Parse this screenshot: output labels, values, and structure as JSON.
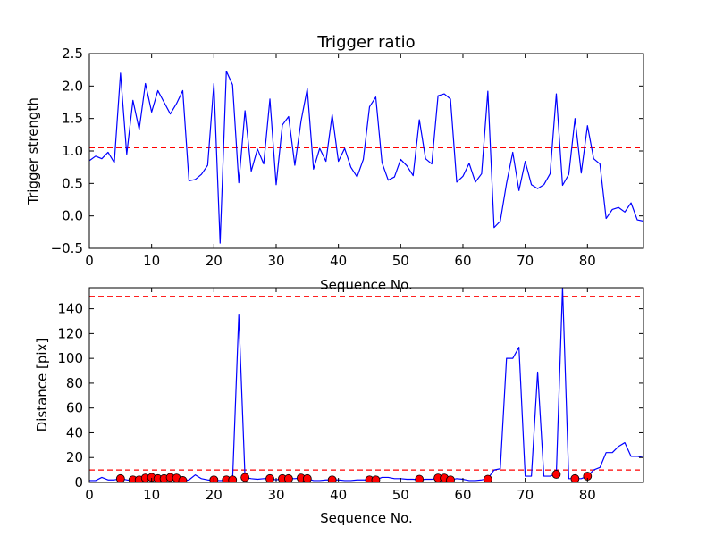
{
  "figure": {
    "background": "#ffffff"
  },
  "chart_data": [
    {
      "type": "line",
      "title": "Trigger ratio",
      "xlabel": "Sequence No.",
      "ylabel": "Trigger strength",
      "xlim": [
        0,
        89
      ],
      "ylim": [
        -0.5,
        2.5
      ],
      "xticks": [
        0,
        10,
        20,
        30,
        40,
        50,
        60,
        70,
        80
      ],
      "xtick_labels": [
        "0",
        "10",
        "20",
        "30",
        "40",
        "50",
        "60",
        "70",
        "80"
      ],
      "yticks": [
        -0.5,
        0.0,
        0.5,
        1.0,
        1.5,
        2.0,
        2.5
      ],
      "ytick_labels": [
        "−0.5",
        "0.0",
        "0.5",
        "1.0",
        "1.5",
        "2.0",
        "2.5"
      ],
      "grid": false,
      "series": [
        {
          "color": "#0000ff",
          "x": [
            0,
            1,
            2,
            3,
            4,
            5,
            6,
            7,
            8,
            9,
            10,
            11,
            12,
            13,
            14,
            15,
            16,
            17,
            18,
            19,
            20,
            21,
            22,
            23,
            24,
            25,
            26,
            27,
            28,
            29,
            30,
            31,
            32,
            33,
            34,
            35,
            36,
            37,
            38,
            39,
            40,
            41,
            42,
            43,
            44,
            45,
            46,
            47,
            48,
            49,
            50,
            51,
            52,
            53,
            54,
            55,
            56,
            57,
            58,
            59,
            60,
            61,
            62,
            63,
            64,
            65,
            66,
            67,
            68,
            69,
            70,
            71,
            72,
            73,
            74,
            75,
            76,
            77,
            78,
            79,
            80,
            81,
            82,
            83,
            84,
            85,
            86,
            87,
            88,
            89
          ],
          "y": [
            0.85,
            0.92,
            0.88,
            0.98,
            0.82,
            2.2,
            0.95,
            1.78,
            1.33,
            2.04,
            1.6,
            1.93,
            1.75,
            1.57,
            1.73,
            1.93,
            0.54,
            0.56,
            0.64,
            0.78,
            2.04,
            -0.42,
            2.23,
            2.02,
            0.51,
            1.62,
            0.69,
            1.03,
            0.8,
            1.8,
            0.48,
            1.4,
            1.53,
            0.78,
            1.46,
            1.96,
            0.72,
            1.04,
            0.84,
            1.56,
            0.84,
            1.04,
            0.75,
            0.6,
            0.87,
            1.68,
            1.83,
            0.82,
            0.55,
            0.6,
            0.87,
            0.77,
            0.62,
            1.48,
            0.88,
            0.8,
            1.85,
            1.88,
            1.8,
            0.52,
            0.61,
            0.81,
            0.52,
            0.65,
            1.92,
            -0.18,
            -0.08,
            0.5,
            0.98,
            0.39,
            0.84,
            0.48,
            0.42,
            0.48,
            0.65,
            1.88,
            0.47,
            0.64,
            1.5,
            0.66,
            1.39,
            0.88,
            0.8,
            -0.04,
            0.1,
            0.13,
            0.06,
            0.2,
            -0.06,
            -0.08
          ]
        }
      ],
      "reference_lines": [
        {
          "y": 1.05,
          "color": "#ff0000",
          "style": "dashed"
        }
      ]
    },
    {
      "type": "line",
      "title": "",
      "xlabel": "Sequence No.",
      "ylabel": "Distance [pix]",
      "xlim": [
        0,
        89
      ],
      "ylim": [
        0,
        157
      ],
      "xticks": [
        0,
        10,
        20,
        30,
        40,
        50,
        60,
        70,
        80
      ],
      "xtick_labels": [
        "0",
        "10",
        "20",
        "30",
        "40",
        "50",
        "60",
        "70",
        "80"
      ],
      "yticks": [
        0,
        20,
        40,
        60,
        80,
        100,
        120,
        140
      ],
      "ytick_labels": [
        "0",
        "20",
        "40",
        "60",
        "80",
        "100",
        "120",
        "140"
      ],
      "grid": false,
      "series": [
        {
          "color": "#0000ff",
          "x": [
            0,
            1,
            2,
            3,
            4,
            5,
            6,
            7,
            8,
            9,
            10,
            11,
            12,
            13,
            14,
            15,
            16,
            17,
            18,
            19,
            20,
            21,
            22,
            23,
            24,
            25,
            26,
            27,
            28,
            29,
            30,
            31,
            32,
            33,
            34,
            35,
            36,
            37,
            38,
            39,
            40,
            41,
            42,
            43,
            44,
            45,
            46,
            47,
            48,
            49,
            50,
            51,
            52,
            53,
            54,
            55,
            56,
            57,
            58,
            59,
            60,
            61,
            62,
            63,
            64,
            65,
            66,
            67,
            68,
            69,
            70,
            71,
            72,
            73,
            74,
            75,
            76,
            77,
            78,
            79,
            80,
            81,
            82,
            83,
            84,
            85,
            86,
            87,
            88,
            89
          ],
          "y": [
            1.5,
            1.5,
            4,
            2,
            2,
            3,
            2,
            1.5,
            2,
            3.5,
            4,
            2.5,
            3,
            4,
            3.5,
            1.5,
            2,
            6,
            3,
            2,
            1.5,
            1.5,
            1.5,
            1.5,
            135,
            4,
            3,
            2.5,
            3,
            3,
            2,
            3,
            3,
            3,
            3.5,
            3,
            1.5,
            1.5,
            2,
            2,
            2,
            1.5,
            1.5,
            2,
            2,
            2,
            2,
            4,
            4,
            3,
            3,
            2.5,
            2.5,
            2,
            2.5,
            2.5,
            3.5,
            3,
            2,
            3,
            2.5,
            1.5,
            1.5,
            2,
            3,
            10,
            11,
            100,
            100,
            109,
            5,
            5,
            89,
            5,
            5,
            7,
            157,
            3,
            3,
            3,
            5,
            10,
            12,
            24,
            24,
            29,
            32,
            21,
            21,
            20
          ]
        }
      ],
      "markers": {
        "color": "#ff0000",
        "x": [
          5,
          7,
          8,
          9,
          10,
          11,
          12,
          13,
          14,
          15,
          20,
          22,
          23,
          25,
          29,
          31,
          32,
          34,
          35,
          39,
          45,
          46,
          53,
          56,
          57,
          58,
          64,
          75,
          78,
          80
        ],
        "y": [
          3,
          2,
          2,
          3.5,
          4,
          3,
          3,
          4,
          3.5,
          1.5,
          2,
          2,
          2,
          4,
          3,
          3,
          3,
          3.5,
          3,
          2,
          2,
          2,
          2.5,
          3.5,
          3.5,
          2,
          2.5,
          6.5,
          3,
          5
        ]
      },
      "reference_lines": [
        {
          "y": 150,
          "color": "#ff0000",
          "style": "dashed"
        },
        {
          "y": 10,
          "color": "#ff0000",
          "style": "dashed"
        }
      ]
    }
  ]
}
